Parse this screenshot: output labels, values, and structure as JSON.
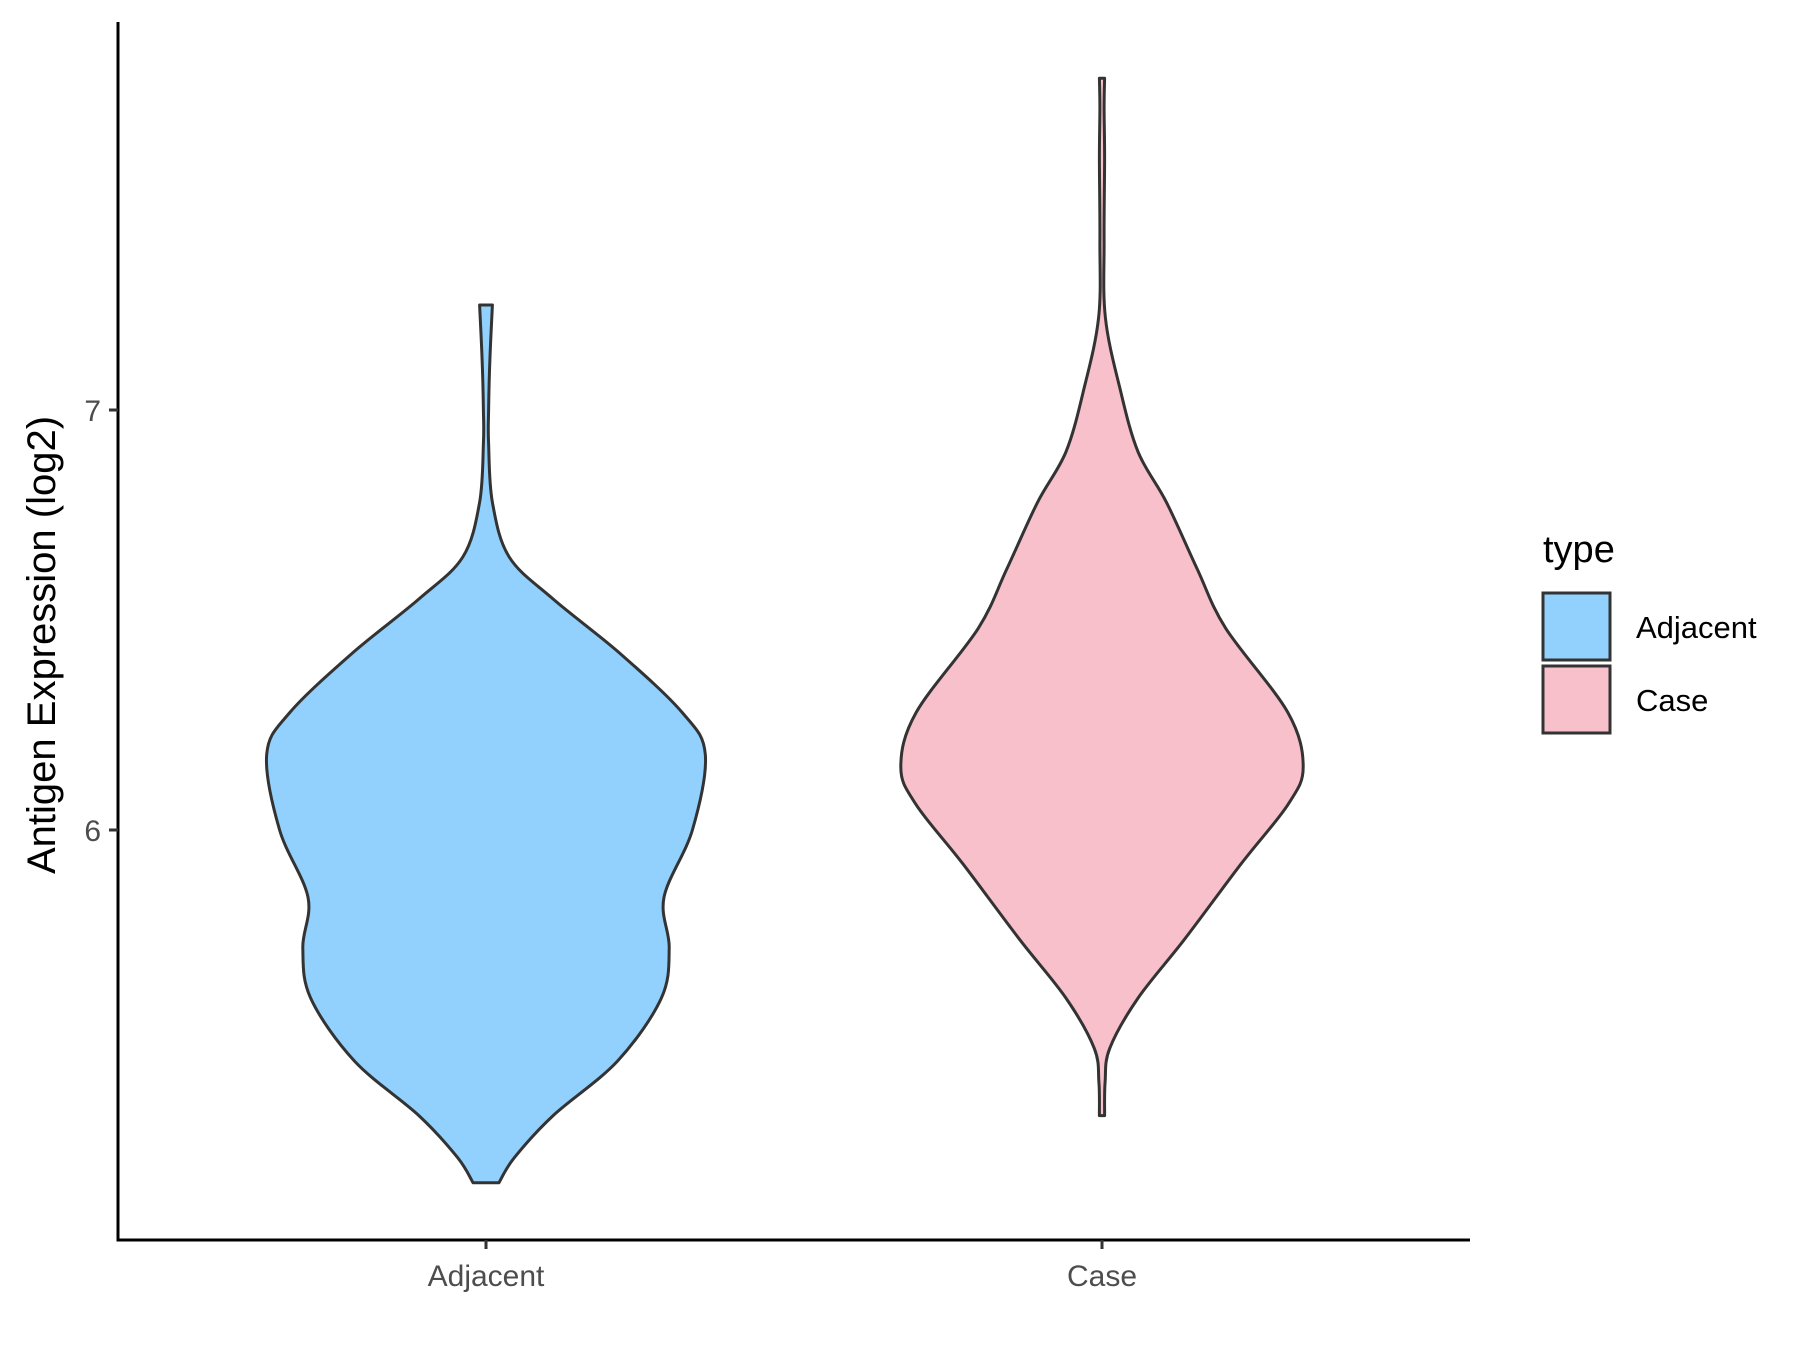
{
  "chart_data": {
    "type": "violin",
    "title": "",
    "xlabel": "",
    "ylabel": "Antigen Expression (log2)",
    "categories": [
      "Adjacent",
      "Case"
    ],
    "y_ticks": [
      "6",
      "7"
    ],
    "ylim": [
      5.05,
      7.93
    ],
    "grid": false,
    "legend": {
      "title": "type",
      "position": "right",
      "entries": [
        {
          "label": "Adjacent",
          "color": "#92D1FD"
        },
        {
          "label": "Case",
          "color": "#F7C0CB"
        }
      ]
    },
    "series": [
      {
        "category": "Adjacent",
        "fill": "#92D1FD",
        "y_range": [
          5.16,
          7.25
        ],
        "density_profile": [
          [
            5.16,
            0.05
          ],
          [
            5.22,
            0.11
          ],
          [
            5.32,
            0.26
          ],
          [
            5.45,
            0.51
          ],
          [
            5.6,
            0.68
          ],
          [
            5.72,
            0.71
          ],
          [
            5.84,
            0.69
          ],
          [
            6.0,
            0.8
          ],
          [
            6.18,
            0.85
          ],
          [
            6.28,
            0.76
          ],
          [
            6.42,
            0.52
          ],
          [
            6.55,
            0.26
          ],
          [
            6.65,
            0.09
          ],
          [
            6.78,
            0.025
          ],
          [
            6.92,
            0.01
          ],
          [
            7.0,
            0.01
          ],
          [
            7.12,
            0.015
          ],
          [
            7.25,
            0.025
          ]
        ]
      },
      {
        "category": "Case",
        "fill": "#F7C0CB",
        "y_range": [
          5.32,
          7.79
        ],
        "density_profile": [
          [
            5.32,
            0.01
          ],
          [
            5.4,
            0.012
          ],
          [
            5.48,
            0.03
          ],
          [
            5.6,
            0.14
          ],
          [
            5.74,
            0.32
          ],
          [
            5.92,
            0.54
          ],
          [
            6.06,
            0.72
          ],
          [
            6.15,
            0.78
          ],
          [
            6.28,
            0.72
          ],
          [
            6.48,
            0.48
          ],
          [
            6.62,
            0.37
          ],
          [
            6.78,
            0.25
          ],
          [
            6.9,
            0.14
          ],
          [
            7.05,
            0.07
          ],
          [
            7.22,
            0.013
          ],
          [
            7.4,
            0.008
          ],
          [
            7.6,
            0.01
          ],
          [
            7.72,
            0.008
          ],
          [
            7.79,
            0.01
          ]
        ]
      }
    ],
    "colors": {
      "outline": "#333333",
      "axis": "#000000"
    }
  }
}
